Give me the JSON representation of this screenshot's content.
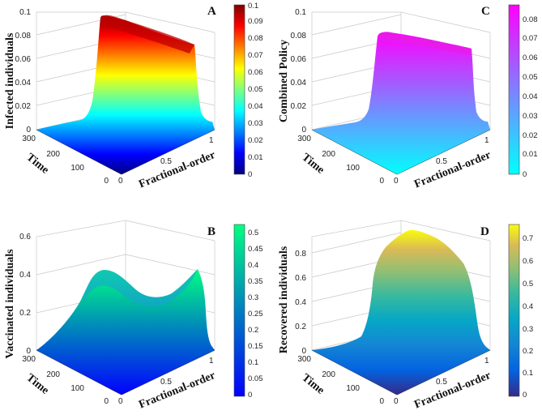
{
  "panels": [
    {
      "letter": "A",
      "zlabel": "Infected individuals",
      "xlabel": "Fractional-order",
      "ylabel": "Time",
      "colormap": "jet",
      "zticks": [
        "0",
        "0.02",
        "0.04",
        "0.06",
        "0.08",
        "0.1"
      ],
      "xticks": [
        "0",
        "0.5",
        "1"
      ],
      "yticks": [
        "0",
        "100",
        "200",
        "300"
      ],
      "cbticks": [
        "0",
        "0.01",
        "0.02",
        "0.03",
        "0.04",
        "0.05",
        "0.06",
        "0.07",
        "0.08",
        "0.09",
        "0.1"
      ]
    },
    {
      "letter": "B",
      "zlabel": "Vaccinated individuals",
      "xlabel": "Fractional-order",
      "ylabel": "Time",
      "colormap": "winter",
      "zticks": [
        "0",
        "0.2",
        "0.4",
        "0.6"
      ],
      "xticks": [
        "0",
        "0.5",
        "1"
      ],
      "yticks": [
        "0",
        "100",
        "200",
        "300"
      ],
      "cbticks": [
        "0",
        "0.05",
        "0.1",
        "0.15",
        "0.2",
        "0.25",
        "0.3",
        "0.35",
        "0.4",
        "0.45",
        "0.5"
      ]
    },
    {
      "letter": "C",
      "zlabel": "Combined Policy",
      "xlabel": "Fractional-order",
      "ylabel": "Time",
      "colormap": "cool",
      "zticks": [
        "0",
        "0.02",
        "0.04",
        "0.06",
        "0.08",
        "0.1"
      ],
      "xticks": [
        "0",
        "0.5",
        "1"
      ],
      "yticks": [
        "0",
        "100",
        "200",
        "300"
      ],
      "cbticks": [
        "0",
        "0.01",
        "0.02",
        "0.03",
        "0.04",
        "0.05",
        "0.06",
        "0.07",
        "0.08"
      ]
    },
    {
      "letter": "D",
      "zlabel": "Recovered individuals",
      "xlabel": "Fractional-order",
      "ylabel": "Time",
      "colormap": "parula",
      "zticks": [
        "0",
        "0.2",
        "0.4",
        "0.6",
        "0.8"
      ],
      "xticks": [
        "0",
        "0.5",
        "1"
      ],
      "yticks": [
        "0",
        "100",
        "200",
        "300"
      ],
      "cbticks": [
        "0",
        "0.1",
        "0.2",
        "0.3",
        "0.4",
        "0.5",
        "0.6",
        "0.7"
      ]
    }
  ],
  "chart_data": [
    {
      "panel": "A",
      "type": "surface",
      "colormap": "jet",
      "xlabel": "Fractional-order",
      "ylabel": "Time",
      "zlabel": "Infected individuals",
      "xlim": [
        0,
        1
      ],
      "ylim": [
        0,
        300
      ],
      "zlim": [
        0,
        0.1
      ],
      "clim": [
        0,
        0.1
      ],
      "grid": true,
      "x": [
        0.4,
        0.5,
        0.6,
        0.7,
        0.8,
        0.9
      ],
      "y": [
        0,
        60,
        120,
        180,
        240,
        300
      ],
      "z": [
        [
          0.1,
          0.101,
          0.098,
          0.097,
          0.096,
          0.095
        ],
        [
          0.093,
          0.093,
          0.092,
          0.092,
          0.091,
          0.091
        ],
        [
          0.09,
          0.09,
          0.089,
          0.089,
          0.088,
          0.088
        ],
        [
          0.087,
          0.087,
          0.087,
          0.086,
          0.086,
          0.086
        ],
        [
          0.085,
          0.085,
          0.085,
          0.085,
          0.085,
          0.085
        ],
        [
          0.084,
          0.084,
          0.084,
          0.084,
          0.084,
          0.084
        ]
      ]
    },
    {
      "panel": "B",
      "type": "surface",
      "colormap": "winter",
      "xlabel": "Fractional-order",
      "ylabel": "Time",
      "zlabel": "Vaccinated individuals",
      "xlim": [
        0,
        1
      ],
      "ylim": [
        0,
        300
      ],
      "zlim": [
        0,
        0.6
      ],
      "clim": [
        0,
        0.5
      ],
      "grid": true,
      "x": [
        0.0,
        0.2,
        0.4,
        0.6,
        0.8,
        1.0
      ],
      "y": [
        0,
        60,
        120,
        180,
        240,
        300
      ],
      "z": [
        [
          0.0,
          0.05,
          0.25,
          0.4,
          0.45,
          0.52
        ],
        [
          0.0,
          0.04,
          0.22,
          0.32,
          0.3,
          0.36
        ],
        [
          0.0,
          0.03,
          0.2,
          0.26,
          0.24,
          0.28
        ],
        [
          0.0,
          0.03,
          0.22,
          0.3,
          0.22,
          0.22
        ],
        [
          0.0,
          0.02,
          0.2,
          0.34,
          0.24,
          0.18
        ],
        [
          0.0,
          0.02,
          0.16,
          0.3,
          0.22,
          0.15
        ]
      ]
    },
    {
      "panel": "C",
      "type": "surface",
      "colormap": "cool",
      "xlabel": "Fractional-order",
      "ylabel": "Time",
      "zlabel": "Combined Policy",
      "xlim": [
        0,
        1
      ],
      "ylim": [
        0,
        300
      ],
      "zlim": [
        0,
        0.1
      ],
      "clim": [
        0,
        0.088
      ],
      "grid": true,
      "x": [
        0.4,
        0.5,
        0.6,
        0.7,
        0.8,
        0.9
      ],
      "y": [
        0,
        60,
        120,
        180,
        240,
        300
      ],
      "z": [
        [
          0.088,
          0.088,
          0.087,
          0.087,
          0.086,
          0.086
        ],
        [
          0.086,
          0.086,
          0.086,
          0.086,
          0.086,
          0.086
        ],
        [
          0.086,
          0.086,
          0.086,
          0.086,
          0.086,
          0.086
        ],
        [
          0.086,
          0.086,
          0.086,
          0.086,
          0.086,
          0.086
        ],
        [
          0.086,
          0.086,
          0.086,
          0.086,
          0.086,
          0.086
        ],
        [
          0.086,
          0.086,
          0.086,
          0.086,
          0.086,
          0.086
        ]
      ]
    },
    {
      "panel": "D",
      "type": "surface",
      "colormap": "parula",
      "xlabel": "Fractional-order",
      "ylabel": "Time",
      "zlabel": "Recovered individuals",
      "xlim": [
        0,
        1
      ],
      "ylim": [
        0,
        300
      ],
      "zlim": [
        0,
        0.8
      ],
      "clim": [
        0,
        0.75
      ],
      "grid": true,
      "x": [
        0.4,
        0.5,
        0.6,
        0.7,
        0.8,
        0.9
      ],
      "y": [
        0,
        60,
        120,
        180,
        240,
        300
      ],
      "z": [
        [
          0.62,
          0.65,
          0.68,
          0.7,
          0.68,
          0.62
        ],
        [
          0.66,
          0.69,
          0.72,
          0.74,
          0.72,
          0.66
        ],
        [
          0.68,
          0.71,
          0.74,
          0.76,
          0.74,
          0.67
        ],
        [
          0.66,
          0.7,
          0.73,
          0.74,
          0.72,
          0.65
        ],
        [
          0.62,
          0.66,
          0.7,
          0.71,
          0.68,
          0.6
        ],
        [
          0.58,
          0.62,
          0.66,
          0.68,
          0.64,
          0.56
        ]
      ]
    }
  ]
}
